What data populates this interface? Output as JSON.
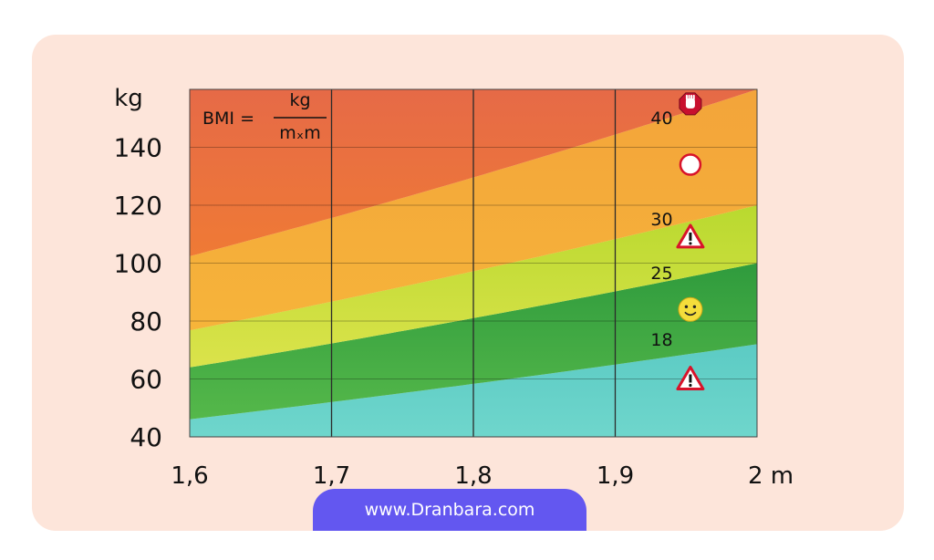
{
  "card_color": "#fde5da",
  "footer": {
    "label": "www.Dranbara.com",
    "color": "#6357f0"
  },
  "chart_data": {
    "type": "area",
    "title": "",
    "formula": {
      "left": "BMI =",
      "numerator": "kg",
      "denominator": "mₓm"
    },
    "xlabel": "m",
    "ylabel": "kg",
    "xlim": [
      1.6,
      2.0
    ],
    "ylim": [
      40,
      160
    ],
    "x_ticks": [
      {
        "value": 1.6,
        "label": "1,6"
      },
      {
        "value": 1.7,
        "label": "1,7"
      },
      {
        "value": 1.8,
        "label": "1,8"
      },
      {
        "value": 1.9,
        "label": "1,9"
      },
      {
        "value": 2.0,
        "label": "2 m"
      }
    ],
    "y_ticks": [
      {
        "value": 40,
        "label": "40"
      },
      {
        "value": 60,
        "label": "60"
      },
      {
        "value": 80,
        "label": "80"
      },
      {
        "value": 100,
        "label": "100"
      },
      {
        "value": 120,
        "label": "120"
      },
      {
        "value": 140,
        "label": "140"
      }
    ],
    "grid": {
      "vertical": true,
      "horizontal": true
    },
    "bands": [
      {
        "name": "",
        "from_bmi": 0,
        "to_bmi": 18,
        "color_top": "#5ccbc4",
        "color_bottom": "#6fd6cc"
      },
      {
        "name": "",
        "from_bmi": 18,
        "to_bmi": 25,
        "color_top": "#2f9b3d",
        "color_bottom": "#55b84a"
      },
      {
        "name": "",
        "from_bmi": 25,
        "to_bmi": 30,
        "color_top": "#b9d92f",
        "color_bottom": "#dbe34b"
      },
      {
        "name": "",
        "from_bmi": 30,
        "to_bmi": 40,
        "color_top": "#f3a43a",
        "color_bottom": "#f6b43a"
      },
      {
        "name": "",
        "from_bmi": 40,
        "to_bmi": 100,
        "color_top": "#e66a47",
        "color_bottom": "#ef7a35"
      }
    ],
    "boundary_labels": [
      {
        "bmi": 40,
        "label": "40",
        "x": 1.925,
        "y": 148
      },
      {
        "bmi": 30,
        "label": "30",
        "x": 1.925,
        "y": 113
      },
      {
        "bmi": 25,
        "label": "25",
        "x": 1.925,
        "y": 94.5
      },
      {
        "bmi": 18,
        "label": "18",
        "x": 1.925,
        "y": 71.5
      }
    ],
    "zone_icons": [
      {
        "icon": "stop-hand-icon",
        "x": 1.953,
        "y": 155
      },
      {
        "icon": "circle-icon",
        "x": 1.953,
        "y": 134
      },
      {
        "icon": "warning-triangle-icon",
        "x": 1.953,
        "y": 109
      },
      {
        "icon": "smiley-icon",
        "x": 1.953,
        "y": 84
      },
      {
        "icon": "warning-triangle-icon",
        "x": 1.953,
        "y": 60
      }
    ]
  }
}
